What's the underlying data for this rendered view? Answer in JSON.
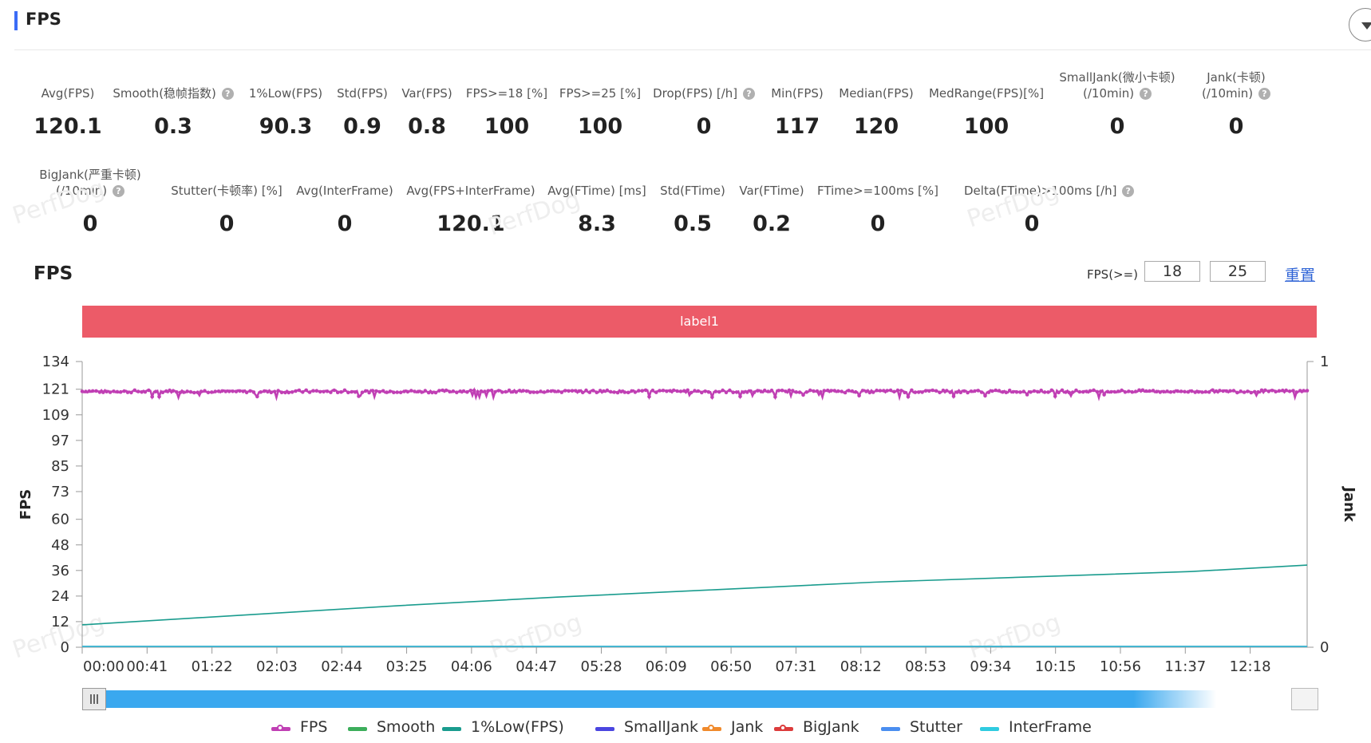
{
  "header": {
    "title": "FPS"
  },
  "stats_row1": [
    {
      "label": "Avg(FPS)",
      "value": "120.1",
      "help": false
    },
    {
      "label": "Smooth(稳帧指数)",
      "value": "0.3",
      "help": true
    },
    {
      "label": "1%Low(FPS)",
      "value": "90.3",
      "help": false
    },
    {
      "label": "Std(FPS)",
      "value": "0.9",
      "help": false
    },
    {
      "label": "Var(FPS)",
      "value": "0.8",
      "help": false
    },
    {
      "label": "FPS>=18 [%]",
      "value": "100",
      "help": false
    },
    {
      "label": "FPS>=25 [%]",
      "value": "100",
      "help": false
    },
    {
      "label": "Drop(FPS) [/h]",
      "value": "0",
      "help": true
    },
    {
      "label": "Min(FPS)",
      "value": "117",
      "help": false
    },
    {
      "label": "Median(FPS)",
      "value": "120",
      "help": false
    },
    {
      "label": "MedRange(FPS)[%]",
      "value": "100",
      "help": false
    },
    {
      "label": "SmallJank(微小卡顿)",
      "label2": "(/10min)",
      "value": "0",
      "help": true
    },
    {
      "label": "Jank(卡顿)",
      "label2": "(/10min)",
      "value": "0",
      "help": true
    }
  ],
  "stats_row2": [
    {
      "label": "BigJank(严重卡顿)",
      "label2": "(/10min)",
      "value": "0",
      "help": true
    },
    {
      "label": "Stutter(卡顿率) [%]",
      "value": "0",
      "help": false
    },
    {
      "label": "Avg(InterFrame)",
      "value": "0",
      "help": false
    },
    {
      "label": "Avg(FPS+InterFrame)",
      "value": "120.1",
      "help": false
    },
    {
      "label": "Avg(FTime) [ms]",
      "value": "8.3",
      "help": false
    },
    {
      "label": "Std(FTime)",
      "value": "0.5",
      "help": false
    },
    {
      "label": "Var(FTime)",
      "value": "0.2",
      "help": false
    },
    {
      "label": "FTime>=100ms [%]",
      "value": "0",
      "help": false
    },
    {
      "label": "Delta(FTime)>100ms [/h]",
      "value": "0",
      "help": true
    }
  ],
  "watermark_text": "PerfDog",
  "chart_section": {
    "title": "FPS",
    "threshold_label": "FPS(>=)",
    "threshold1": "18",
    "threshold2": "25",
    "reset_label": "重置",
    "label_band": "label1",
    "help_glyph": "?"
  },
  "chart_data": {
    "type": "line",
    "y_left_label": "FPS",
    "y_right_label": "Jank",
    "y_left_ticks": [
      "134",
      "121",
      "109",
      "97",
      "85",
      "73",
      "60",
      "48",
      "36",
      "24",
      "12",
      "0"
    ],
    "y_left_range": [
      0,
      134
    ],
    "y_right_ticks": [
      "1",
      "0"
    ],
    "y_right_range": [
      0,
      1
    ],
    "x_ticks": [
      "00:00",
      "00:41",
      "01:22",
      "02:03",
      "02:44",
      "03:25",
      "04:06",
      "04:47",
      "05:28",
      "06:09",
      "06:50",
      "07:31",
      "08:12",
      "08:53",
      "09:34",
      "10:15",
      "10:56",
      "11:37",
      "12:18"
    ],
    "x_range_seconds": [
      0,
      774
    ],
    "series": [
      {
        "name": "FPS",
        "color": "#c03fb4",
        "approx_value": 120,
        "range": [
          117,
          122
        ]
      },
      {
        "name": "Smooth",
        "color": "#3cae5b",
        "values_note": "0"
      },
      {
        "name": "1%Low(FPS)",
        "color": "#1a9c8e",
        "points": [
          [
            0,
            10.5
          ],
          [
            100,
            15
          ],
          [
            200,
            19.5
          ],
          [
            300,
            23.5
          ],
          [
            400,
            27
          ],
          [
            500,
            30.5
          ],
          [
            600,
            33
          ],
          [
            700,
            35.5
          ],
          [
            774,
            38.5
          ]
        ]
      },
      {
        "name": "SmallJank",
        "color": "#4a45e0",
        "values_note": "0"
      },
      {
        "name": "Jank",
        "color": "#f08a2c",
        "values_note": "0"
      },
      {
        "name": "BigJank",
        "color": "#dc3c3c",
        "values_note": "0"
      },
      {
        "name": "Stutter",
        "color": "#4a8ef0",
        "values_note": "0"
      },
      {
        "name": "InterFrame",
        "color": "#2fcbe0",
        "values_note": "0"
      }
    ]
  }
}
